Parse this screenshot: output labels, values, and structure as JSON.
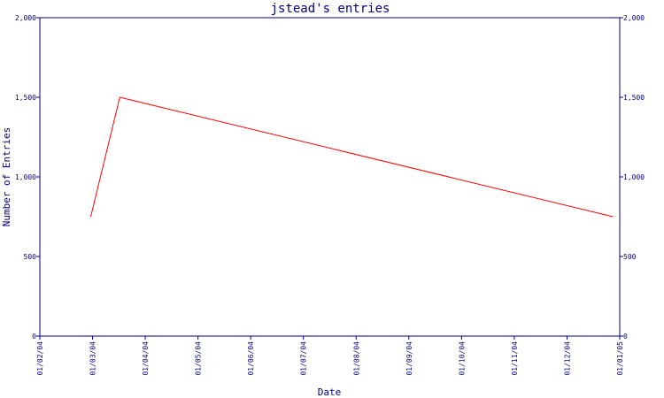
{
  "chart_data": {
    "type": "line",
    "title": "jstead's entries",
    "xlabel": "Date",
    "ylabel": "Number of Entries",
    "ylim": [
      0,
      2000
    ],
    "y_ticks": [
      0,
      500,
      1000,
      1500,
      2000
    ],
    "y_tick_labels": [
      "0",
      "500",
      "1,000",
      "1,500",
      "2,000"
    ],
    "x_ticks": [
      "01/02/04",
      "01/03/04",
      "01/04/04",
      "01/05/04",
      "01/06/04",
      "01/07/04",
      "01/08/04",
      "01/09/04",
      "01/10/04",
      "01/11/04",
      "01/12/04",
      "01/01/05"
    ],
    "grid": false,
    "series": [
      {
        "color": "#ff0000",
        "points": [
          {
            "x": "2004-02-29",
            "y": 750
          },
          {
            "x": "2004-03-17",
            "y": 1500
          },
          {
            "x": "2004-12-28",
            "y": 750
          }
        ]
      }
    ],
    "axis_color": "#00007f"
  }
}
